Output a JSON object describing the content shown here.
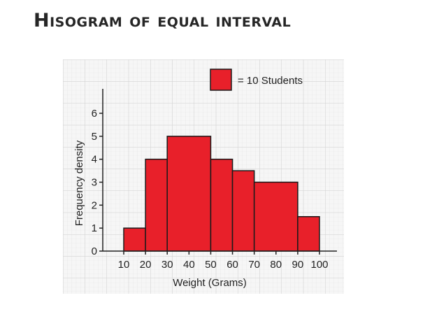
{
  "slide": {
    "title": "Hisogram of equal interval"
  },
  "chart_data": {
    "type": "bar",
    "title": "",
    "xlabel": "Weight (Grams)",
    "ylabel": "Frequency density",
    "x_ticks": [
      10,
      20,
      30,
      40,
      50,
      60,
      70,
      80,
      90,
      100
    ],
    "y_ticks": [
      0,
      1,
      2,
      3,
      4,
      5,
      6
    ],
    "xlim": [
      10,
      100
    ],
    "ylim": [
      0,
      6
    ],
    "grid": true,
    "legend": {
      "placement": "top-right",
      "label": "= 10 Students"
    },
    "bars": [
      {
        "x_start": 10,
        "x_end": 20,
        "value": 1
      },
      {
        "x_start": 20,
        "x_end": 30,
        "value": 4
      },
      {
        "x_start": 30,
        "x_end": 50,
        "value": 5
      },
      {
        "x_start": 50,
        "x_end": 60,
        "value": 4
      },
      {
        "x_start": 60,
        "x_end": 70,
        "value": 3.5
      },
      {
        "x_start": 70,
        "x_end": 90,
        "value": 3
      },
      {
        "x_start": 90,
        "x_end": 100,
        "value": 1.5
      }
    ],
    "colors": {
      "bar_fill": "#e8202a",
      "bar_stroke": "#1a1a1a",
      "grid_minor": "#e4e4e4",
      "grid_major": "#cfcfcf",
      "panel_bg": "#f6f6f6"
    }
  }
}
